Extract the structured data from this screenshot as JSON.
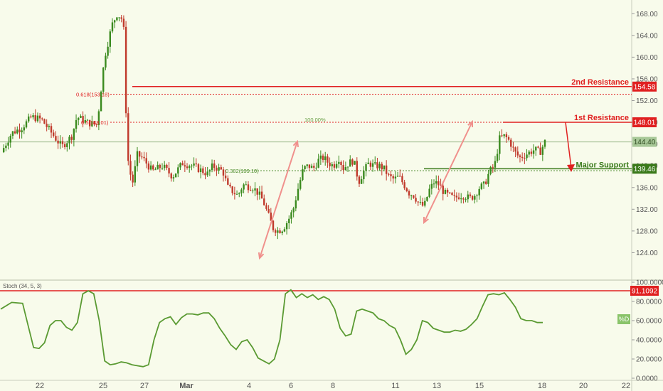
{
  "chart_data": [
    {
      "type": "candlestick",
      "ylim": [
        120,
        170
      ],
      "y_ticks": [
        "124.00",
        "128.00",
        "132.00",
        "136.00",
        "140.00",
        "144.00",
        "148.00",
        "152.00",
        "156.00",
        "160.00",
        "164.00",
        "168.00"
      ],
      "x_tick_labels": [
        "22",
        "25",
        "27",
        "Mar",
        "4",
        "6",
        "8",
        "11",
        "13",
        "15",
        "18",
        "20",
        "22"
      ],
      "current_price": "144.40",
      "colors": {
        "up": "#3a8a1e",
        "down": "#c0392b",
        "resistance": "#e02020",
        "support": "#3a7a1a",
        "arrow": "#f0908c"
      },
      "annotations": {
        "second_resistance": {
          "label": "2nd Resistance",
          "value": "154.58"
        },
        "first_resistance": {
          "label": "1st Resistance",
          "value": "148.01"
        },
        "major_support": {
          "label": "Major Support",
          "value": "139.46"
        },
        "fib_0618": "0.618(153.18)",
        "fib_05": "0.5(148.01)",
        "fib_0382": "0.382(139.10)",
        "fib_100": "100.00%"
      },
      "close_path": [
        [
          0,
          142.5
        ],
        [
          2,
          146.0
        ],
        [
          4,
          147.0
        ],
        [
          6,
          149.0
        ],
        [
          8,
          148.5
        ],
        [
          10,
          146.0
        ],
        [
          12,
          143.5
        ],
        [
          14,
          145.5
        ],
        [
          15,
          149.0
        ],
        [
          17,
          148.0
        ],
        [
          19,
          147.5
        ],
        [
          20.5,
          160.0
        ],
        [
          22,
          166.0
        ],
        [
          23,
          168.0
        ],
        [
          24,
          167.0
        ],
        [
          24.3,
          165.0
        ],
        [
          25.0,
          142.0
        ],
        [
          26,
          136.5
        ],
        [
          27,
          142.0
        ],
        [
          28,
          141.5
        ],
        [
          30,
          139.0
        ],
        [
          32,
          140.0
        ],
        [
          34,
          138.0
        ],
        [
          36,
          140.5
        ],
        [
          38,
          140.0
        ],
        [
          40,
          139.0
        ],
        [
          41,
          138.5
        ],
        [
          42,
          140.0
        ],
        [
          44,
          139.0
        ],
        [
          45,
          136.0
        ],
        [
          47,
          134.5
        ],
        [
          48,
          136.5
        ],
        [
          50,
          136.0
        ],
        [
          51,
          135.0
        ],
        [
          52,
          133.5
        ],
        [
          53,
          131.0
        ],
        [
          54,
          128.5
        ],
        [
          55,
          128.0
        ],
        [
          56,
          128.5
        ],
        [
          57,
          130.0
        ],
        [
          58,
          132.0
        ],
        [
          59,
          136.0
        ],
        [
          60,
          139.5
        ],
        [
          61,
          140.0
        ],
        [
          62,
          139.5
        ],
        [
          63,
          141.0
        ],
        [
          64,
          141.5
        ],
        [
          65,
          140.5
        ],
        [
          66,
          140.0
        ],
        [
          67,
          141.5
        ],
        [
          68,
          139.5
        ],
        [
          69,
          140.5
        ],
        [
          70,
          141.0
        ],
        [
          71,
          137.0
        ],
        [
          72,
          139.0
        ],
        [
          73,
          140.5
        ],
        [
          74,
          140.0
        ],
        [
          75,
          140.0
        ],
        [
          76,
          139.5
        ],
        [
          77,
          138.0
        ],
        [
          78,
          137.5
        ],
        [
          79,
          138.0
        ],
        [
          80,
          136.5
        ],
        [
          81,
          135.0
        ],
        [
          82,
          134.5
        ],
        [
          83,
          133.0
        ],
        [
          84,
          132.5
        ],
        [
          85,
          135.5
        ],
        [
          86,
          137.0
        ],
        [
          87,
          136.5
        ],
        [
          88,
          135.0
        ],
        [
          89,
          134.5
        ],
        [
          90,
          134.0
        ],
        [
          91,
          134.5
        ],
        [
          92,
          134.5
        ],
        [
          93,
          134.0
        ],
        [
          94,
          134.5
        ],
        [
          95,
          136.0
        ],
        [
          96,
          136.5
        ],
        [
          97,
          139.0
        ],
        [
          98,
          140.0
        ],
        [
          99,
          145.0
        ],
        [
          100,
          145.5
        ],
        [
          101,
          144.5
        ],
        [
          102,
          142.5
        ],
        [
          103,
          141.5
        ],
        [
          104,
          142.0
        ],
        [
          105,
          142.5
        ],
        [
          106,
          143.0
        ],
        [
          107,
          142.5
        ],
        [
          108,
          144.4
        ]
      ]
    },
    {
      "type": "line",
      "title": "Stoch (34, 5, 3)",
      "ylim": [
        0,
        100
      ],
      "y_ticks": [
        "0.0000",
        "20.0000",
        "40.0000",
        "60.0000",
        "80.0000",
        "100.0000"
      ],
      "overbought_value": "91.1092",
      "legend_badge": "%D",
      "series": [
        {
          "values": [
            [
              0,
              72
            ],
            [
              2,
              79
            ],
            [
              4,
              78
            ],
            [
              5,
              55
            ],
            [
              6,
              32
            ],
            [
              7,
              31
            ],
            [
              8,
              37
            ],
            [
              9,
              55
            ],
            [
              10,
              60
            ],
            [
              11,
              60
            ],
            [
              12,
              53
            ],
            [
              13,
              50
            ],
            [
              14,
              58
            ],
            [
              15,
              88
            ],
            [
              16,
              91
            ],
            [
              17,
              88
            ],
            [
              18,
              60
            ],
            [
              19,
              18
            ],
            [
              20,
              14
            ],
            [
              21,
              15
            ],
            [
              22,
              17
            ],
            [
              23,
              16
            ],
            [
              24,
              14
            ],
            [
              25,
              13
            ],
            [
              26,
              12
            ],
            [
              27,
              14
            ],
            [
              28,
              40
            ],
            [
              29,
              58
            ],
            [
              30,
              62
            ],
            [
              31,
              64
            ],
            [
              32,
              56
            ],
            [
              33,
              63
            ],
            [
              34,
              67
            ],
            [
              35,
              67
            ],
            [
              36,
              66
            ],
            [
              37,
              68
            ],
            [
              38,
              68
            ],
            [
              39,
              62
            ],
            [
              40,
              52
            ],
            [
              41,
              44
            ],
            [
              42,
              35
            ],
            [
              43,
              30
            ],
            [
              44,
              38
            ],
            [
              45,
              40
            ],
            [
              46,
              32
            ],
            [
              47,
              21
            ],
            [
              48,
              18
            ],
            [
              49,
              15
            ],
            [
              50,
              20
            ],
            [
              51,
              40
            ],
            [
              52,
              88
            ],
            [
              53,
              92
            ],
            [
              54,
              84
            ],
            [
              55,
              88
            ],
            [
              56,
              84
            ],
            [
              57,
              87
            ],
            [
              58,
              82
            ],
            [
              59,
              85
            ],
            [
              60,
              82
            ],
            [
              61,
              72
            ],
            [
              62,
              52
            ],
            [
              63,
              44
            ],
            [
              64,
              46
            ],
            [
              65,
              70
            ],
            [
              66,
              72
            ],
            [
              67,
              70
            ],
            [
              68,
              68
            ],
            [
              69,
              62
            ],
            [
              70,
              60
            ],
            [
              71,
              55
            ],
            [
              72,
              52
            ],
            [
              73,
              40
            ],
            [
              74,
              25
            ],
            [
              75,
              30
            ],
            [
              76,
              40
            ],
            [
              77,
              60
            ],
            [
              78,
              58
            ],
            [
              79,
              52
            ],
            [
              80,
              50
            ],
            [
              81,
              48
            ],
            [
              82,
              48
            ],
            [
              83,
              50
            ],
            [
              84,
              49
            ],
            [
              85,
              51
            ],
            [
              86,
              56
            ],
            [
              87,
              62
            ],
            [
              88,
              75
            ],
            [
              89,
              87
            ],
            [
              90,
              88
            ],
            [
              91,
              87
            ],
            [
              92,
              89
            ],
            [
              93,
              82
            ],
            [
              94,
              74
            ],
            [
              95,
              62
            ],
            [
              96,
              60
            ],
            [
              97,
              60
            ],
            [
              98,
              58
            ],
            [
              99,
              58
            ]
          ]
        }
      ]
    }
  ]
}
